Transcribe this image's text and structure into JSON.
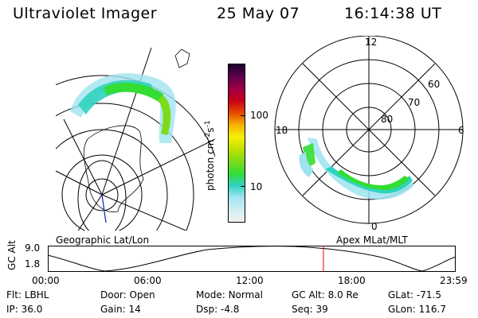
{
  "header": {
    "instrument": "Ultraviolet Imager",
    "date": "25 May 07",
    "time": "16:14:38 UT"
  },
  "colorbar": {
    "unit_label": "photon cm",
    "unit_exp1": "-2",
    "unit_s": "s",
    "unit_exp2": "-1",
    "ticks": [
      "100",
      "10"
    ],
    "colors": [
      "#f2f2f2",
      "#cfeef4",
      "#a4e4f4",
      "#2fd3bf",
      "#33dd33",
      "#7edb1a",
      "#bfe000",
      "#f6f000",
      "#f7b200",
      "#e34a00",
      "#c80018",
      "#9e0044",
      "#5d004d",
      "#1d0030"
    ]
  },
  "left_map": {
    "title": "Geographic Lat/Lon"
  },
  "right_map": {
    "title": "Apex MLat/MLT",
    "mlt_labels": [
      "12",
      "18",
      "6",
      "0"
    ],
    "lat_labels": [
      "60",
      "70",
      "80"
    ]
  },
  "timeline": {
    "ylabel": "GC Alt",
    "y_ticks": [
      "9.0",
      "1.8"
    ],
    "x_ticks": [
      "00:00",
      "06:00",
      "12:00",
      "18:00",
      "23:59"
    ],
    "current_time_color": "#e00000"
  },
  "info": {
    "row1": [
      {
        "label": "Flt:",
        "value": "LBHL"
      },
      {
        "label": "Door:",
        "value": "Open"
      },
      {
        "label": "Mode:",
        "value": "Normal"
      },
      {
        "label": "GC Alt:",
        "value": "8.0 Re"
      },
      {
        "label": "GLat:",
        "value": "-71.5"
      }
    ],
    "row2": [
      {
        "label": "IP:",
        "value": "36.0"
      },
      {
        "label": "Gain:",
        "value": "14"
      },
      {
        "label": "Dsp:",
        "value": "-4.8"
      },
      {
        "label": "Seq:",
        "value": "39"
      },
      {
        "label": "GLon:",
        "value": "116.7"
      }
    ]
  }
}
